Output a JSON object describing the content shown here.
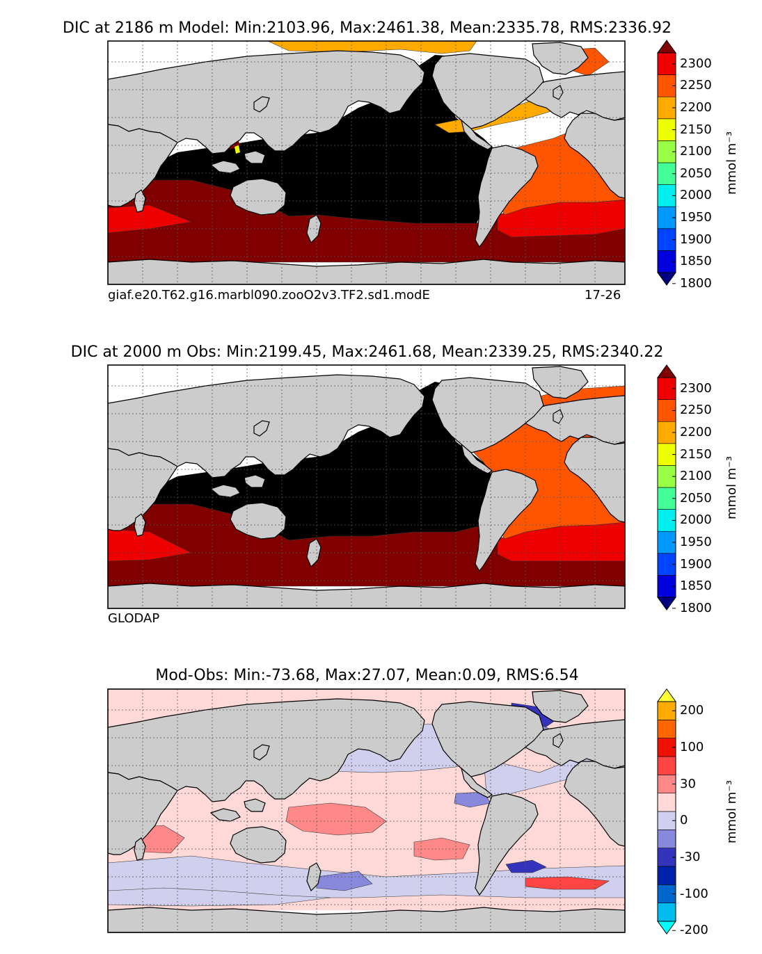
{
  "chart_data": [
    {
      "type": "heatmap",
      "title": "DIC at 2186 m Model: Min:2103.96, Max:2461.38, Mean:2335.78, RMS:2336.92",
      "caption_left": "giaf.e20.T62.g16.marbl090.zooO2v3.TF2.sd1.modE",
      "caption_right": "17-26",
      "colorbar": {
        "unit_label": "mmol m⁻³",
        "ticks": [
          "2300",
          "2250",
          "2200",
          "2150",
          "2100",
          "2050",
          "2000",
          "1950",
          "1900",
          "1850",
          "1800"
        ],
        "colors": [
          "#000080",
          "#0000dd",
          "#0044ff",
          "#0099ff",
          "#00eeee",
          "#44ff99",
          "#99ff44",
          "#eeff00",
          "#ffaa00",
          "#ff5500",
          "#ee0000",
          "#800000"
        ],
        "extend": "both"
      },
      "stats": {
        "min": 2103.96,
        "max": 2461.38,
        "mean": 2335.78,
        "rms": 2336.92
      }
    },
    {
      "type": "heatmap",
      "title": "DIC at 2000 m Obs: Min:2199.45, Max:2461.68, Mean:2339.25, RMS:2340.22",
      "caption_left": "GLODAP",
      "colorbar": {
        "unit_label": "mmol m⁻³",
        "ticks": [
          "2300",
          "2250",
          "2200",
          "2150",
          "2100",
          "2050",
          "2000",
          "1950",
          "1900",
          "1850",
          "1800"
        ],
        "colors": [
          "#000080",
          "#0000dd",
          "#0044ff",
          "#0099ff",
          "#00eeee",
          "#44ff99",
          "#99ff44",
          "#eeff00",
          "#ffaa00",
          "#ff5500",
          "#ee0000",
          "#800000"
        ],
        "extend": "both"
      },
      "stats": {
        "min": 2199.45,
        "max": 2461.68,
        "mean": 2339.25,
        "rms": 2340.22
      }
    },
    {
      "type": "heatmap",
      "title": "Mod-Obs: Min:-73.68, Max:27.07, Mean:0.09, RMS:6.54",
      "colorbar": {
        "unit_label": "mmol m⁻³",
        "ticks": [
          "200",
          "100",
          "30",
          "0",
          "-30",
          "-100",
          "-200"
        ],
        "colors": [
          "#00ffff",
          "#00bbee",
          "#0066cc",
          "#0022aa",
          "#3333bb",
          "#8888dd",
          "#d0d0ee",
          "#ffd8d8",
          "#ff8888",
          "#ff4444",
          "#ee1100",
          "#ff6600",
          "#ffaa00",
          "#ffff33"
        ],
        "extend": "both"
      },
      "stats": {
        "min": -73.68,
        "max": 27.07,
        "mean": 0.09,
        "rms": 6.54
      }
    }
  ],
  "palette": {
    "land": "#cccccc",
    "nodata": "#ffffff",
    "pacific_deep": "#000000"
  }
}
